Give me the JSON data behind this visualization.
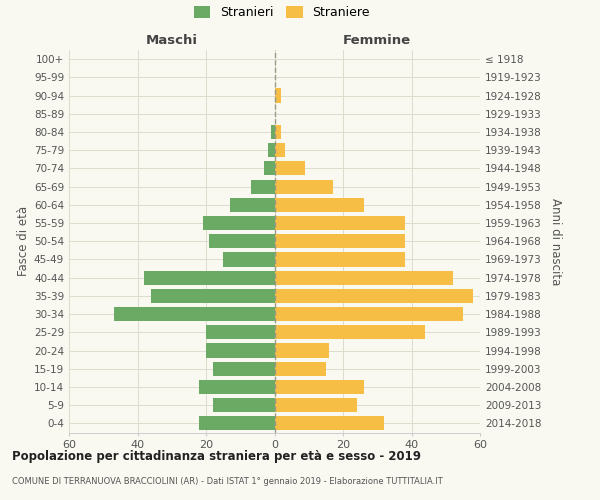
{
  "age_groups": [
    "0-4",
    "5-9",
    "10-14",
    "15-19",
    "20-24",
    "25-29",
    "30-34",
    "35-39",
    "40-44",
    "45-49",
    "50-54",
    "55-59",
    "60-64",
    "65-69",
    "70-74",
    "75-79",
    "80-84",
    "85-89",
    "90-94",
    "95-99",
    "100+"
  ],
  "birth_years": [
    "2014-2018",
    "2009-2013",
    "2004-2008",
    "1999-2003",
    "1994-1998",
    "1989-1993",
    "1984-1988",
    "1979-1983",
    "1974-1978",
    "1969-1973",
    "1964-1968",
    "1959-1963",
    "1954-1958",
    "1949-1953",
    "1944-1948",
    "1939-1943",
    "1934-1938",
    "1929-1933",
    "1924-1928",
    "1919-1923",
    "≤ 1918"
  ],
  "maschi": [
    22,
    18,
    22,
    18,
    20,
    20,
    47,
    36,
    38,
    15,
    19,
    21,
    13,
    7,
    3,
    2,
    1,
    0,
    0,
    0,
    0
  ],
  "femmine": [
    32,
    24,
    26,
    15,
    16,
    44,
    55,
    58,
    52,
    38,
    38,
    38,
    26,
    17,
    9,
    3,
    2,
    0,
    2,
    0,
    0
  ],
  "color_maschi": "#6aaa64",
  "color_femmine": "#f7be45",
  "title": "Popolazione per cittadinanza straniera per età e sesso - 2019",
  "subtitle": "COMUNE DI TERRANUOVA BRACCIOLINI (AR) - Dati ISTAT 1° gennaio 2019 - Elaborazione TUTTITALIA.IT",
  "xlabel_left": "Maschi",
  "xlabel_right": "Femmine",
  "ylabel_left": "Fasce di età",
  "ylabel_right": "Anni di nascita",
  "legend_stranieri": "Stranieri",
  "legend_straniere": "Straniere",
  "xlim": 60,
  "background_color": "#f9f9f2",
  "grid_color": "#ddddcc"
}
